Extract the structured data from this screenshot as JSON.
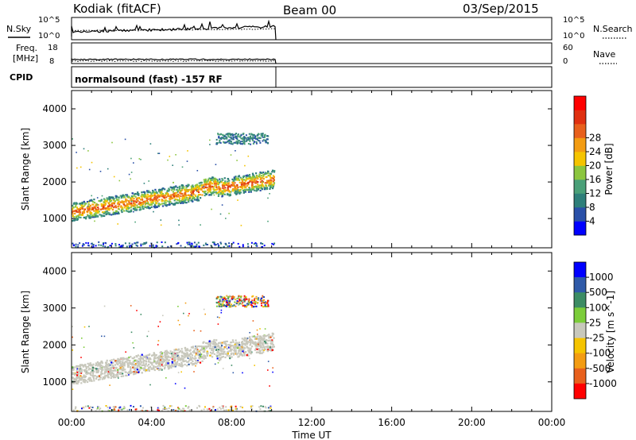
{
  "header": {
    "station": "Kodiak (fitACF)",
    "beam": "Beam 00",
    "date": "03/Sep/2015"
  },
  "aux_panels": {
    "nsky": {
      "label": "N.Sky",
      "ticks_left": [
        "10^5",
        "10^0"
      ],
      "right_label": "N.Search",
      "ticks_right": [
        "10^5",
        "10^0"
      ]
    },
    "freq": {
      "label_line1": "Freq.",
      "label_line2": "[MHz]",
      "ticks_left": [
        "18",
        "8"
      ],
      "right_label": "Nave",
      "ticks_right": [
        "60",
        "0"
      ]
    },
    "cpid": {
      "label": "CPID",
      "text": "normalsound (fast) -157 RF"
    }
  },
  "colors": {
    "power": [
      "#0000ff",
      "#2a50a8",
      "#2e7f7a",
      "#4aa078",
      "#8cc63f",
      "#f5c400",
      "#f39c12",
      "#e8601c",
      "#e03010",
      "#ff0000"
    ],
    "velocity": [
      "#0000ff",
      "#2f5aa8",
      "#3c8c64",
      "#7ccd3a",
      "#c8c8bc",
      "#f5c400",
      "#f39c12",
      "#e8601c",
      "#ff0000"
    ]
  },
  "chart_data": [
    {
      "type": "heatmap",
      "xlabel": "",
      "ylabel": "Slant Range [km]",
      "x_range_hours": [
        0,
        24
      ],
      "ylim": [
        200,
        4500
      ],
      "yticks": [
        1000,
        2000,
        3000,
        4000
      ],
      "colorbar": {
        "label": "Power [dB]",
        "ticks": [
          "4",
          "8",
          "12",
          "16",
          "20",
          "24",
          "28"
        ],
        "range": [
          0,
          30
        ]
      },
      "features": [
        {
          "name": "main band",
          "start_hour": 0.0,
          "end_hour": 10.1,
          "range_start_km": 1200,
          "range_end_km": 2100,
          "width_km": 500,
          "value_db": 16
        },
        {
          "name": "upper scatter",
          "start_hour": 7.2,
          "end_hour": 9.8,
          "range_km": 3200,
          "width_km": 300,
          "value_db": 8
        },
        {
          "name": "near range",
          "start_hour": 0.0,
          "end_hour": 10.1,
          "range_km": 300,
          "width_km": 150,
          "value_db": 4
        }
      ]
    },
    {
      "type": "heatmap",
      "xlabel": "Time UT",
      "ylabel": "Slant Range [km]",
      "x_range_hours": [
        0,
        24
      ],
      "xticks": [
        "00:00",
        "04:00",
        "08:00",
        "12:00",
        "16:00",
        "20:00",
        "00:00"
      ],
      "ylim": [
        200,
        4500
      ],
      "yticks": [
        1000,
        2000,
        3000,
        4000
      ],
      "colorbar": {
        "label": "Velocity [m s^-1]",
        "ticks": [
          "1000",
          "500",
          "100",
          "25",
          "-25",
          "-100",
          "-500",
          "-1000"
        ]
      },
      "features": [
        {
          "name": "main band",
          "start_hour": 0.0,
          "end_hour": 10.1,
          "range_start_km": 1200,
          "range_end_km": 2100,
          "width_km": 500,
          "value": "ground scatter (near zero)"
        },
        {
          "name": "upper scatter",
          "start_hour": 7.2,
          "end_hour": 9.8,
          "range_km": 3200,
          "width_km": 300,
          "value": "mixed"
        },
        {
          "name": "near range",
          "start_hour": 0.0,
          "end_hour": 10.1,
          "range_km": 300,
          "width_km": 150,
          "value": "mixed"
        }
      ]
    }
  ]
}
